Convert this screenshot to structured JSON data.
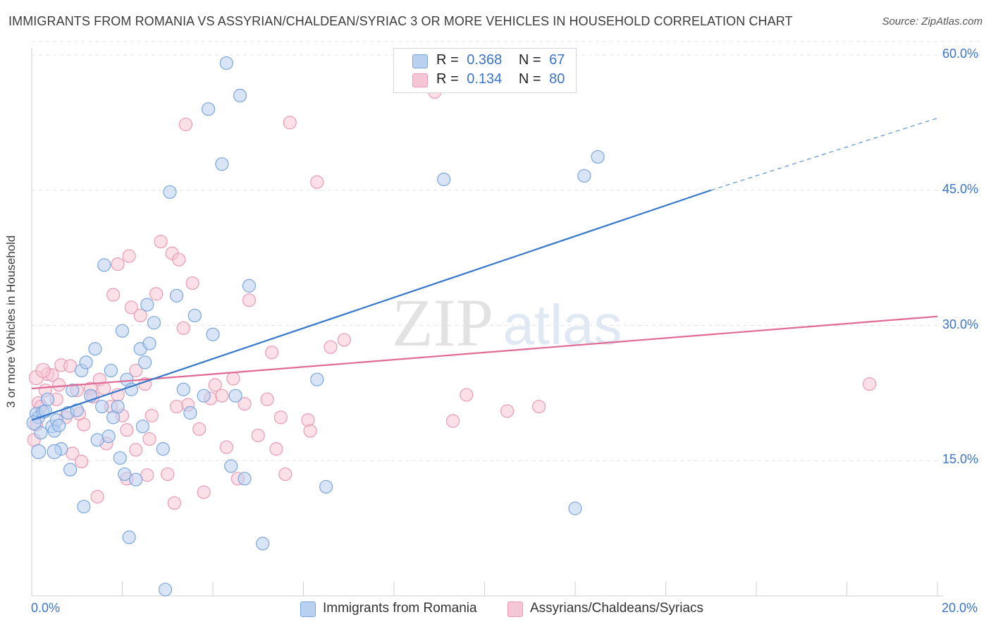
{
  "title": "IMMIGRANTS FROM ROMANIA VS ASSYRIAN/CHALDEAN/SYRIAC 3 OR MORE VEHICLES IN HOUSEHOLD CORRELATION CHART",
  "source": "Source: ZipAtlas.com",
  "watermark": {
    "zip": "ZIP",
    "atlas": "atlas"
  },
  "legend": {
    "blue": {
      "r_label": "R =",
      "r_value": "0.368",
      "n_label": "N =",
      "n_value": "67"
    },
    "pink": {
      "r_label": "R =",
      "r_value": "0.134",
      "n_label": "N =",
      "n_value": "80"
    }
  },
  "bottom_legend": {
    "blue_label": "Immigrants from Romania",
    "pink_label": "Assyrians/Chaldeans/Syriacs"
  },
  "colors": {
    "blue_fill": "#b9d0f0",
    "blue_stroke": "#7aa6de",
    "blue_line": "#3577cc",
    "pink_fill": "#f7c6d6",
    "pink_stroke": "#ea9ab5",
    "pink_line": "#e06a95",
    "tick_text": "#3b74c9",
    "grid": "#e3e3e3"
  },
  "chart_data": {
    "type": "scatter",
    "title": "IMMIGRANTS FROM ROMANIA VS ASSYRIAN/CHALDEAN/SYRIAC 3 OR MORE VEHICLES IN HOUSEHOLD CORRELATION CHART",
    "xlabel": "",
    "ylabel": "3 or more Vehicles in Household",
    "xlim": [
      0,
      20
    ],
    "ylim": [
      0,
      60
    ],
    "x_tick_labels": [
      "0.0%",
      "20.0%"
    ],
    "y_ticks": [
      15,
      30,
      45,
      60
    ],
    "y_tick_labels": [
      "15.0%",
      "30.0%",
      "45.0%",
      "60.0%"
    ],
    "grid": true,
    "series": [
      {
        "name": "Immigrants from Romania",
        "color": "blue",
        "R": 0.368,
        "N": 67,
        "trend": {
          "x0": 0,
          "y0": 19.5,
          "x1": 15.0,
          "y1": 45.0,
          "dash_x1": 20.0,
          "dash_y1": 53.0
        },
        "points": [
          [
            0.1,
            20.2
          ],
          [
            0.15,
            19.8
          ],
          [
            0.2,
            18.1
          ],
          [
            0.25,
            20.4
          ],
          [
            0.3,
            20.5
          ],
          [
            0.35,
            21.8
          ],
          [
            0.45,
            18.8
          ],
          [
            0.5,
            18.3
          ],
          [
            0.55,
            19.5
          ],
          [
            0.6,
            18.9
          ],
          [
            0.65,
            16.3
          ],
          [
            0.8,
            20.3
          ],
          [
            0.85,
            14.0
          ],
          [
            0.9,
            22.8
          ],
          [
            1.0,
            20.6
          ],
          [
            1.1,
            25.0
          ],
          [
            1.15,
            9.9
          ],
          [
            1.2,
            25.9
          ],
          [
            1.3,
            22.2
          ],
          [
            1.4,
            27.4
          ],
          [
            1.45,
            17.3
          ],
          [
            1.55,
            21.0
          ],
          [
            1.6,
            36.7
          ],
          [
            1.7,
            17.7
          ],
          [
            1.75,
            25.0
          ],
          [
            1.8,
            19.8
          ],
          [
            1.9,
            21.0
          ],
          [
            1.95,
            15.3
          ],
          [
            2.0,
            29.4
          ],
          [
            2.05,
            13.5
          ],
          [
            2.1,
            24.0
          ],
          [
            2.15,
            6.5
          ],
          [
            2.2,
            22.9
          ],
          [
            2.3,
            12.9
          ],
          [
            2.4,
            27.4
          ],
          [
            2.45,
            18.8
          ],
          [
            2.5,
            25.9
          ],
          [
            2.55,
            32.3
          ],
          [
            2.6,
            28.0
          ],
          [
            2.7,
            30.3
          ],
          [
            2.9,
            16.3
          ],
          [
            2.95,
            0.7
          ],
          [
            3.05,
            44.8
          ],
          [
            3.2,
            33.3
          ],
          [
            3.35,
            22.9
          ],
          [
            3.5,
            20.3
          ],
          [
            3.6,
            31.1
          ],
          [
            3.8,
            22.2
          ],
          [
            3.9,
            54.0
          ],
          [
            4.0,
            29.0
          ],
          [
            4.2,
            47.9
          ],
          [
            4.3,
            59.1
          ],
          [
            4.4,
            14.4
          ],
          [
            4.5,
            22.2
          ],
          [
            4.6,
            55.5
          ],
          [
            4.7,
            13.0
          ],
          [
            4.8,
            34.4
          ],
          [
            5.1,
            5.8
          ],
          [
            6.3,
            24.0
          ],
          [
            6.5,
            12.1
          ],
          [
            9.1,
            46.2
          ],
          [
            12.0,
            9.7
          ],
          [
            12.2,
            46.6
          ],
          [
            12.5,
            48.7
          ],
          [
            0.05,
            19.2
          ],
          [
            0.5,
            16.0
          ],
          [
            0.15,
            16.0
          ]
        ]
      },
      {
        "name": "Assyrians/Chaldeans/Syriacs",
        "color": "pink",
        "R": 0.134,
        "N": 80,
        "trend": {
          "x0": 0,
          "y0": 23.0,
          "x1": 20.0,
          "y1": 31.0
        },
        "points": [
          [
            0.05,
            17.3
          ],
          [
            0.1,
            19.0
          ],
          [
            0.15,
            21.4
          ],
          [
            0.2,
            21.0
          ],
          [
            0.3,
            22.8
          ],
          [
            0.35,
            24.6
          ],
          [
            0.45,
            24.5
          ],
          [
            0.55,
            21.8
          ],
          [
            0.65,
            25.6
          ],
          [
            0.75,
            19.8
          ],
          [
            0.85,
            25.5
          ],
          [
            0.9,
            15.8
          ],
          [
            1.0,
            22.8
          ],
          [
            1.1,
            14.9
          ],
          [
            1.15,
            19.0
          ],
          [
            1.3,
            23.0
          ],
          [
            1.45,
            11.0
          ],
          [
            1.5,
            24.0
          ],
          [
            1.6,
            23.0
          ],
          [
            1.65,
            16.9
          ],
          [
            1.75,
            21.0
          ],
          [
            1.8,
            33.4
          ],
          [
            1.9,
            36.8
          ],
          [
            2.0,
            20.0
          ],
          [
            2.1,
            18.4
          ],
          [
            2.15,
            37.7
          ],
          [
            2.2,
            32.0
          ],
          [
            2.3,
            16.2
          ],
          [
            2.4,
            31.1
          ],
          [
            2.5,
            23.5
          ],
          [
            2.55,
            13.4
          ],
          [
            2.6,
            17.4
          ],
          [
            2.65,
            20.0
          ],
          [
            2.75,
            33.5
          ],
          [
            2.85,
            39.3
          ],
          [
            3.0,
            13.5
          ],
          [
            3.1,
            38.0
          ],
          [
            3.15,
            10.3
          ],
          [
            3.25,
            37.3
          ],
          [
            3.35,
            29.7
          ],
          [
            3.4,
            52.3
          ],
          [
            3.45,
            21.2
          ],
          [
            3.55,
            34.7
          ],
          [
            3.7,
            18.5
          ],
          [
            3.8,
            11.5
          ],
          [
            3.95,
            21.9
          ],
          [
            4.05,
            23.4
          ],
          [
            4.2,
            22.2
          ],
          [
            4.3,
            16.5
          ],
          [
            4.45,
            24.1
          ],
          [
            4.55,
            13.0
          ],
          [
            4.7,
            21.3
          ],
          [
            4.8,
            32.8
          ],
          [
            5.0,
            17.8
          ],
          [
            5.2,
            21.8
          ],
          [
            5.3,
            27.0
          ],
          [
            5.4,
            16.3
          ],
          [
            5.5,
            19.8
          ],
          [
            5.6,
            13.5
          ],
          [
            5.7,
            52.5
          ],
          [
            6.1,
            19.5
          ],
          [
            6.15,
            18.3
          ],
          [
            6.3,
            45.9
          ],
          [
            6.6,
            27.6
          ],
          [
            6.9,
            28.4
          ],
          [
            8.9,
            55.9
          ],
          [
            9.3,
            19.4
          ],
          [
            9.6,
            22.3
          ],
          [
            10.5,
            20.5
          ],
          [
            11.2,
            21.0
          ],
          [
            18.5,
            23.5
          ],
          [
            0.1,
            24.2
          ],
          [
            1.35,
            22.1
          ],
          [
            1.9,
            22.3
          ],
          [
            2.3,
            25.0
          ],
          [
            0.25,
            25.0
          ],
          [
            1.05,
            20.2
          ],
          [
            2.1,
            13.0
          ],
          [
            3.2,
            21.0
          ],
          [
            0.6,
            23.4
          ]
        ]
      }
    ]
  }
}
